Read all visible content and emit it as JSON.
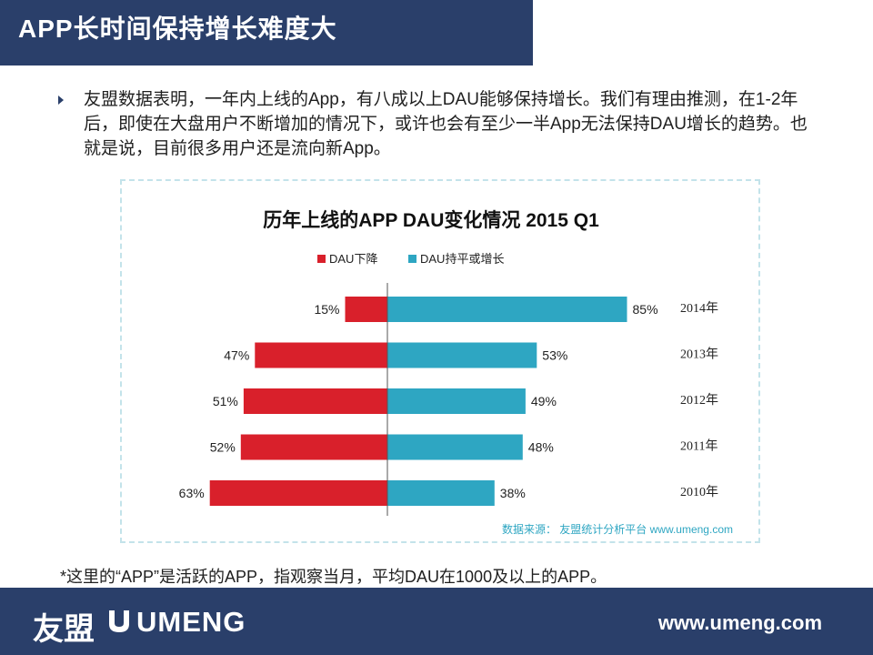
{
  "header": {
    "title": "APP长时间保持增长难度大"
  },
  "bullet": {
    "text": "友盟数据表明，一年内上线的App，有八成以上DAU能够保持增长。我们有理由推测，在1-2年后，即使在大盘用户不断增加的情况下，或许也会有至少一半App无法保持DAU增长的趋势。也就是说，目前很多用户还是流向新App。"
  },
  "chart_data": {
    "type": "bar",
    "orientation": "diverging-horizontal",
    "title": "历年上线的APP DAU变化情况 2015 Q1",
    "categories": [
      "2014年",
      "2013年",
      "2012年",
      "2011年",
      "2010年"
    ],
    "series": [
      {
        "name": "DAU下降",
        "color": "#d9202b",
        "values": [
          15,
          47,
          51,
          52,
          63
        ],
        "labels": [
          "15%",
          "47%",
          "51%",
          "52%",
          "63%"
        ]
      },
      {
        "name": "DAU持平或增长",
        "color": "#2ea6c2",
        "values": [
          85,
          53,
          49,
          48,
          38
        ],
        "labels": [
          "85%",
          "53%",
          "49%",
          "48%",
          "38%"
        ]
      }
    ],
    "legend_position": "top-left",
    "source": "数据来源： 友盟统计分析平台 www.umeng.com",
    "xlim": [
      -100,
      100
    ]
  },
  "footnote": "*这里的“APP”是活跃的APP，指观察当月，平均DAU在1000及以上的APP。",
  "footer": {
    "logo_cn": "友盟",
    "logo_en": "UMENG",
    "url": "www.umeng.com"
  }
}
